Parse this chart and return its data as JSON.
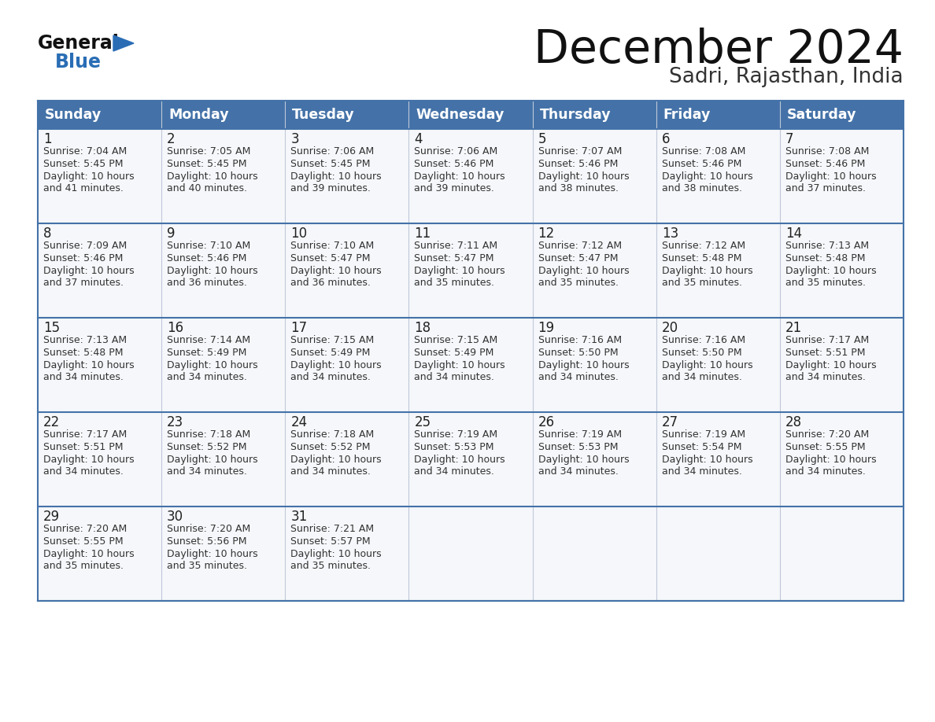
{
  "title": "December 2024",
  "subtitle": "Sadri, Rajasthan, India",
  "header_bg_color": "#4472a8",
  "header_text_color": "#ffffff",
  "cell_bg_color": "#f5f7fa",
  "last_row_bg_color": "#eef0f4",
  "border_color": "#4472a8",
  "separator_color": "#b0c0d8",
  "text_color": "#333333",
  "days_of_week": [
    "Sunday",
    "Monday",
    "Tuesday",
    "Wednesday",
    "Thursday",
    "Friday",
    "Saturday"
  ],
  "weeks": [
    [
      {
        "day": 1,
        "sunrise": "7:04 AM",
        "sunset": "5:45 PM",
        "daylight_line1": "Daylight: 10 hours",
        "daylight_line2": "and 41 minutes."
      },
      {
        "day": 2,
        "sunrise": "7:05 AM",
        "sunset": "5:45 PM",
        "daylight_line1": "Daylight: 10 hours",
        "daylight_line2": "and 40 minutes."
      },
      {
        "day": 3,
        "sunrise": "7:06 AM",
        "sunset": "5:45 PM",
        "daylight_line1": "Daylight: 10 hours",
        "daylight_line2": "and 39 minutes."
      },
      {
        "day": 4,
        "sunrise": "7:06 AM",
        "sunset": "5:46 PM",
        "daylight_line1": "Daylight: 10 hours",
        "daylight_line2": "and 39 minutes."
      },
      {
        "day": 5,
        "sunrise": "7:07 AM",
        "sunset": "5:46 PM",
        "daylight_line1": "Daylight: 10 hours",
        "daylight_line2": "and 38 minutes."
      },
      {
        "day": 6,
        "sunrise": "7:08 AM",
        "sunset": "5:46 PM",
        "daylight_line1": "Daylight: 10 hours",
        "daylight_line2": "and 38 minutes."
      },
      {
        "day": 7,
        "sunrise": "7:08 AM",
        "sunset": "5:46 PM",
        "daylight_line1": "Daylight: 10 hours",
        "daylight_line2": "and 37 minutes."
      }
    ],
    [
      {
        "day": 8,
        "sunrise": "7:09 AM",
        "sunset": "5:46 PM",
        "daylight_line1": "Daylight: 10 hours",
        "daylight_line2": "and 37 minutes."
      },
      {
        "day": 9,
        "sunrise": "7:10 AM",
        "sunset": "5:46 PM",
        "daylight_line1": "Daylight: 10 hours",
        "daylight_line2": "and 36 minutes."
      },
      {
        "day": 10,
        "sunrise": "7:10 AM",
        "sunset": "5:47 PM",
        "daylight_line1": "Daylight: 10 hours",
        "daylight_line2": "and 36 minutes."
      },
      {
        "day": 11,
        "sunrise": "7:11 AM",
        "sunset": "5:47 PM",
        "daylight_line1": "Daylight: 10 hours",
        "daylight_line2": "and 35 minutes."
      },
      {
        "day": 12,
        "sunrise": "7:12 AM",
        "sunset": "5:47 PM",
        "daylight_line1": "Daylight: 10 hours",
        "daylight_line2": "and 35 minutes."
      },
      {
        "day": 13,
        "sunrise": "7:12 AM",
        "sunset": "5:48 PM",
        "daylight_line1": "Daylight: 10 hours",
        "daylight_line2": "and 35 minutes."
      },
      {
        "day": 14,
        "sunrise": "7:13 AM",
        "sunset": "5:48 PM",
        "daylight_line1": "Daylight: 10 hours",
        "daylight_line2": "and 35 minutes."
      }
    ],
    [
      {
        "day": 15,
        "sunrise": "7:13 AM",
        "sunset": "5:48 PM",
        "daylight_line1": "Daylight: 10 hours",
        "daylight_line2": "and 34 minutes."
      },
      {
        "day": 16,
        "sunrise": "7:14 AM",
        "sunset": "5:49 PM",
        "daylight_line1": "Daylight: 10 hours",
        "daylight_line2": "and 34 minutes."
      },
      {
        "day": 17,
        "sunrise": "7:15 AM",
        "sunset": "5:49 PM",
        "daylight_line1": "Daylight: 10 hours",
        "daylight_line2": "and 34 minutes."
      },
      {
        "day": 18,
        "sunrise": "7:15 AM",
        "sunset": "5:49 PM",
        "daylight_line1": "Daylight: 10 hours",
        "daylight_line2": "and 34 minutes."
      },
      {
        "day": 19,
        "sunrise": "7:16 AM",
        "sunset": "5:50 PM",
        "daylight_line1": "Daylight: 10 hours",
        "daylight_line2": "and 34 minutes."
      },
      {
        "day": 20,
        "sunrise": "7:16 AM",
        "sunset": "5:50 PM",
        "daylight_line1": "Daylight: 10 hours",
        "daylight_line2": "and 34 minutes."
      },
      {
        "day": 21,
        "sunrise": "7:17 AM",
        "sunset": "5:51 PM",
        "daylight_line1": "Daylight: 10 hours",
        "daylight_line2": "and 34 minutes."
      }
    ],
    [
      {
        "day": 22,
        "sunrise": "7:17 AM",
        "sunset": "5:51 PM",
        "daylight_line1": "Daylight: 10 hours",
        "daylight_line2": "and 34 minutes."
      },
      {
        "day": 23,
        "sunrise": "7:18 AM",
        "sunset": "5:52 PM",
        "daylight_line1": "Daylight: 10 hours",
        "daylight_line2": "and 34 minutes."
      },
      {
        "day": 24,
        "sunrise": "7:18 AM",
        "sunset": "5:52 PM",
        "daylight_line1": "Daylight: 10 hours",
        "daylight_line2": "and 34 minutes."
      },
      {
        "day": 25,
        "sunrise": "7:19 AM",
        "sunset": "5:53 PM",
        "daylight_line1": "Daylight: 10 hours",
        "daylight_line2": "and 34 minutes."
      },
      {
        "day": 26,
        "sunrise": "7:19 AM",
        "sunset": "5:53 PM",
        "daylight_line1": "Daylight: 10 hours",
        "daylight_line2": "and 34 minutes."
      },
      {
        "day": 27,
        "sunrise": "7:19 AM",
        "sunset": "5:54 PM",
        "daylight_line1": "Daylight: 10 hours",
        "daylight_line2": "and 34 minutes."
      },
      {
        "day": 28,
        "sunrise": "7:20 AM",
        "sunset": "5:55 PM",
        "daylight_line1": "Daylight: 10 hours",
        "daylight_line2": "and 34 minutes."
      }
    ],
    [
      {
        "day": 29,
        "sunrise": "7:20 AM",
        "sunset": "5:55 PM",
        "daylight_line1": "Daylight: 10 hours",
        "daylight_line2": "and 35 minutes."
      },
      {
        "day": 30,
        "sunrise": "7:20 AM",
        "sunset": "5:56 PM",
        "daylight_line1": "Daylight: 10 hours",
        "daylight_line2": "and 35 minutes."
      },
      {
        "day": 31,
        "sunrise": "7:21 AM",
        "sunset": "5:57 PM",
        "daylight_line1": "Daylight: 10 hours",
        "daylight_line2": "and 35 minutes."
      },
      null,
      null,
      null,
      null
    ]
  ],
  "logo_general_color": "#111111",
  "logo_blue_color": "#2a6db5",
  "logo_triangle_color": "#2a6db5",
  "title_color": "#111111",
  "subtitle_color": "#333333"
}
